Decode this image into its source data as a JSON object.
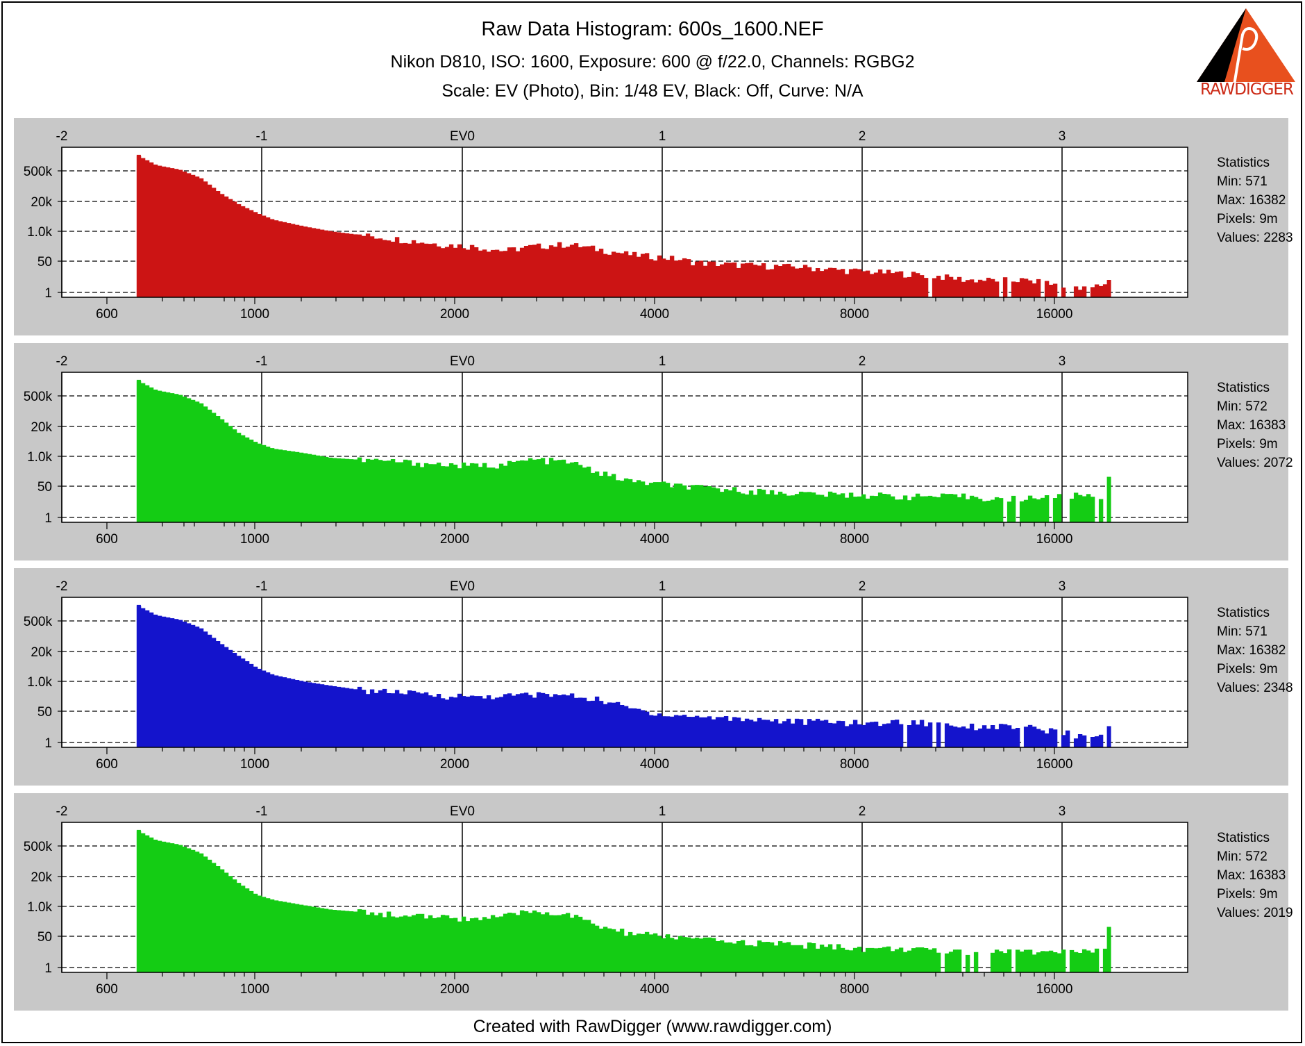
{
  "header": {
    "title": "Raw Data Histogram: 600s_1600.NEF",
    "subtitle": "Nikon D810, ISO: 1600, Exposure: 600 @ f/22.0, Channels: RGBG2",
    "scale": "Scale: EV (Photo), Bin: 1/48 EV, Black: Off, Curve: N/A"
  },
  "logo": {
    "text": "RAWDIGGER",
    "icon": "rawdigger-logo-icon",
    "color": "#e8501e"
  },
  "footer": {
    "text": "Created with RawDigger (www.rawdigger.com)"
  },
  "colors": {
    "panel_bg": "#c8c8c8",
    "plot_bg": "#ffffff",
    "red": "#cc1414",
    "green": "#14cc14",
    "blue": "#1414cc"
  },
  "chart_data": [
    {
      "type": "bar",
      "channel": "R",
      "color": "#cc1414",
      "ev_ticks": [
        "-2",
        "-1",
        "EV0",
        "1",
        "2",
        "3"
      ],
      "x_ticks": [
        "600",
        "1000",
        "2000",
        "4000",
        "8000",
        "16000"
      ],
      "y_ticks": [
        "500k",
        "20k",
        "1.0k",
        "50",
        "1"
      ],
      "xlim": [
        432,
        32000
      ],
      "x": [
        560,
        600,
        650,
        700,
        750,
        800,
        850,
        900,
        1000,
        1100,
        1200,
        1400,
        1600,
        1800,
        2000,
        2200,
        2500,
        2800,
        3100,
        3500,
        4000,
        4500,
        5000,
        5600,
        6300,
        7000,
        8000,
        9000,
        10000,
        11000,
        12000,
        13000,
        14000,
        15000,
        16000,
        16382
      ],
      "counts": [
        1200000,
        400000,
        250000,
        100000,
        20000,
        6000,
        2500,
        1200,
        600,
        350,
        250,
        150,
        90,
        70,
        45,
        70,
        90,
        50,
        30,
        22,
        12,
        10,
        9,
        8,
        6,
        5,
        4,
        3,
        2,
        2,
        2,
        1.5,
        1,
        1,
        1,
        2
      ],
      "statistics": {
        "heading": "Statistics",
        "min": "Min: 571",
        "max": "Max: 16382",
        "pixels": "Pixels: 9m",
        "values": "Values: 2283"
      }
    },
    {
      "type": "bar",
      "channel": "G",
      "color": "#14cc14",
      "ev_ticks": [
        "-2",
        "-1",
        "EV0",
        "1",
        "2",
        "3"
      ],
      "x_ticks": [
        "600",
        "1000",
        "2000",
        "4000",
        "8000",
        "16000"
      ],
      "y_ticks": [
        "500k",
        "20k",
        "1.0k",
        "50",
        "1"
      ],
      "xlim": [
        432,
        32000
      ],
      "x": [
        560,
        600,
        650,
        700,
        750,
        800,
        850,
        900,
        1000,
        1100,
        1200,
        1400,
        1600,
        1800,
        2000,
        2200,
        2500,
        2800,
        3100,
        3500,
        4000,
        4500,
        5000,
        5600,
        6300,
        7000,
        8000,
        9000,
        10000,
        11000,
        12000,
        13000,
        14000,
        15000,
        16000,
        16383
      ],
      "counts": [
        1200000,
        400000,
        250000,
        100000,
        20000,
        4000,
        1500,
        800,
        500,
        300,
        250,
        200,
        150,
        130,
        150,
        250,
        200,
        60,
        25,
        18,
        12,
        10,
        8,
        7,
        6,
        6,
        5,
        5,
        5,
        4,
        4,
        5,
        5,
        6,
        4,
        40
      ],
      "statistics": {
        "heading": "Statistics",
        "min": "Min: 572",
        "max": "Max: 16383",
        "pixels": "Pixels: 9m",
        "values": "Values: 2072"
      }
    },
    {
      "type": "bar",
      "channel": "B",
      "color": "#1414cc",
      "ev_ticks": [
        "-2",
        "-1",
        "EV0",
        "1",
        "2",
        "3"
      ],
      "x_ticks": [
        "600",
        "1000",
        "2000",
        "4000",
        "8000",
        "16000"
      ],
      "y_ticks": [
        "500k",
        "20k",
        "1.0k",
        "50",
        "1"
      ],
      "xlim": [
        432,
        32000
      ],
      "x": [
        560,
        600,
        650,
        700,
        750,
        800,
        850,
        900,
        1000,
        1100,
        1200,
        1400,
        1600,
        1800,
        2000,
        2200,
        2500,
        2800,
        3100,
        3500,
        4000,
        4500,
        5000,
        5600,
        6300,
        7000,
        8000,
        9000,
        10000,
        11000,
        12000,
        13000,
        14000,
        15000,
        16000,
        16382
      ],
      "counts": [
        1200000,
        400000,
        250000,
        100000,
        20000,
        5000,
        1500,
        700,
        350,
        220,
        150,
        110,
        80,
        70,
        75,
        90,
        80,
        50,
        20,
        10,
        8,
        7,
        6,
        5,
        5,
        4,
        5,
        4,
        3,
        3,
        3,
        2,
        1.5,
        1,
        1,
        3
      ],
      "statistics": {
        "heading": "Statistics",
        "min": "Min: 571",
        "max": "Max: 16382",
        "pixels": "Pixels: 9m",
        "values": "Values: 2348"
      }
    },
    {
      "type": "bar",
      "channel": "G2",
      "color": "#14cc14",
      "ev_ticks": [
        "-2",
        "-1",
        "EV0",
        "1",
        "2",
        "3"
      ],
      "x_ticks": [
        "600",
        "1000",
        "2000",
        "4000",
        "8000",
        "16000"
      ],
      "y_ticks": [
        "500k",
        "20k",
        "1.0k",
        "50",
        "1"
      ],
      "xlim": [
        432,
        32000
      ],
      "x": [
        560,
        600,
        650,
        700,
        750,
        800,
        850,
        900,
        1000,
        1100,
        1200,
        1400,
        1600,
        1800,
        2000,
        2200,
        2500,
        2800,
        3100,
        3500,
        4000,
        4500,
        5000,
        5600,
        6300,
        7000,
        8000,
        9000,
        10000,
        11000,
        12000,
        13000,
        14000,
        15000,
        16000,
        16383
      ],
      "counts": [
        1200000,
        400000,
        250000,
        100000,
        20000,
        4000,
        1200,
        700,
        400,
        250,
        200,
        150,
        110,
        100,
        120,
        220,
        150,
        40,
        20,
        15,
        10,
        8,
        7,
        6,
        5,
        4,
        4,
        3,
        3,
        3,
        3,
        3,
        3,
        3,
        3,
        40
      ],
      "statistics": {
        "heading": "Statistics",
        "min": "Min: 572",
        "max": "Max: 16383",
        "pixels": "Pixels: 9m",
        "values": "Values: 2019"
      }
    }
  ]
}
